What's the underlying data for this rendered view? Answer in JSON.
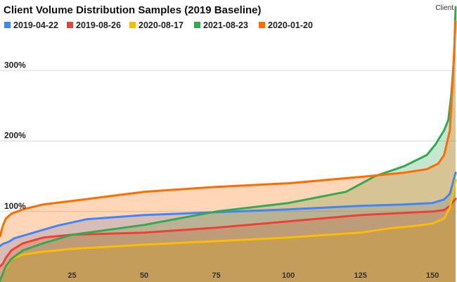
{
  "chart_data": {
    "type": "area",
    "title": "Client Volume Distribution Samples (2019 Baseline)",
    "corner_label": "Client",
    "xlabel": "",
    "ylabel": "",
    "x_range": [
      0,
      158
    ],
    "ylim": [
      0,
      400
    ],
    "x_ticks": [
      25,
      50,
      75,
      100,
      125,
      150
    ],
    "y_ticks": [
      {
        "value": 100,
        "label": "100%"
      },
      {
        "value": 200,
        "label": "200%"
      },
      {
        "value": 300,
        "label": "300%"
      }
    ],
    "grid": true,
    "legend_position": "top-left",
    "series": [
      {
        "name": "2019-04-22",
        "color": "#4285f4",
        "x": [
          0,
          1,
          3,
          5,
          10,
          20,
          30,
          50,
          75,
          100,
          125,
          140,
          150,
          154,
          156,
          158
        ],
        "y": [
          51,
          54,
          57,
          62,
          68,
          80,
          89,
          95,
          99,
          103,
          108,
          110,
          112,
          117,
          125,
          155
        ]
      },
      {
        "name": "2019-08-26",
        "color": "#ea4335",
        "x": [
          0,
          1,
          2,
          4,
          8,
          15,
          25,
          50,
          75,
          100,
          125,
          140,
          150,
          154,
          156,
          158
        ],
        "y": [
          22,
          26,
          34,
          45,
          55,
          63,
          67,
          70,
          77,
          86,
          95,
          98,
          100,
          102,
          108,
          118
        ]
      },
      {
        "name": "2020-08-17",
        "color": "#fbbc04",
        "x": [
          0,
          1,
          2,
          4,
          8,
          15,
          25,
          50,
          75,
          100,
          125,
          135,
          145,
          150,
          154,
          156,
          158
        ],
        "y": [
          2,
          12,
          20,
          33,
          39,
          43,
          47,
          53,
          58,
          63,
          70,
          76,
          80,
          83,
          90,
          105,
          145
        ]
      },
      {
        "name": "2021-08-23",
        "color": "#34a853",
        "x": [
          0,
          1,
          2,
          4,
          8,
          15,
          25,
          50,
          75,
          100,
          120,
          130,
          140,
          148,
          151,
          152.5,
          154,
          155.5,
          156.5,
          157.5,
          158
        ],
        "y": [
          2,
          12,
          22,
          33,
          45,
          55,
          67,
          81,
          100,
          112,
          128,
          150,
          164,
          180,
          195,
          205,
          215,
          230,
          265,
          320,
          390
        ]
      },
      {
        "name": "2020-01-20",
        "color": "#ff6d01",
        "x": [
          0,
          1,
          2,
          4,
          8,
          15,
          25,
          50,
          75,
          100,
          125,
          140,
          148,
          152,
          154,
          156,
          157,
          158
        ],
        "y": [
          65,
          80,
          90,
          97,
          103,
          110,
          115,
          128,
          135,
          140,
          149,
          155,
          160,
          168,
          180,
          215,
          285,
          370
        ]
      }
    ]
  }
}
